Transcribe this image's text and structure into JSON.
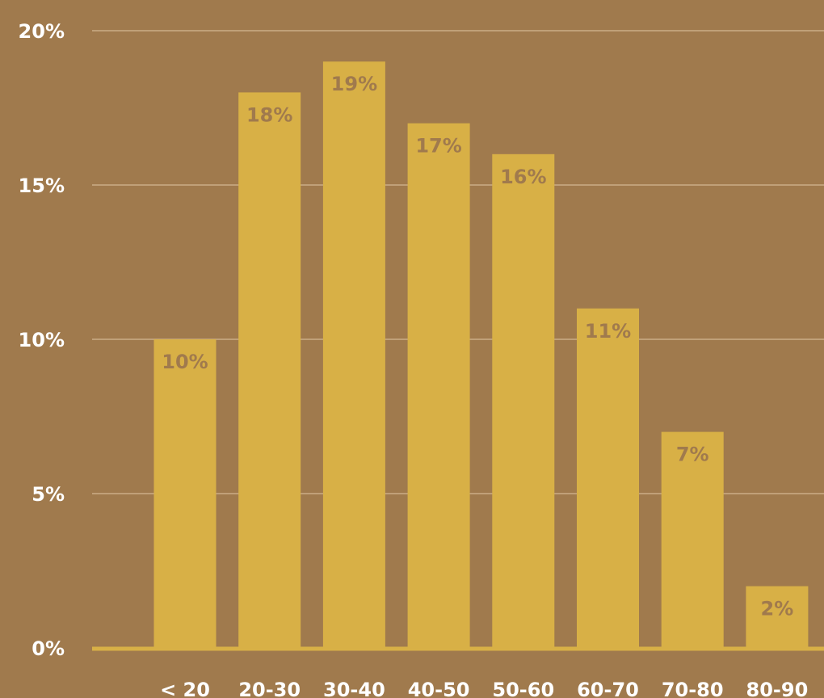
{
  "chart_data": {
    "type": "bar",
    "title": "",
    "xlabel": "",
    "ylabel": "",
    "categories": [
      "< 20",
      "20-30",
      "30-40",
      "40-50",
      "50-60",
      "60-70",
      "70-80",
      "80-90"
    ],
    "values": [
      10,
      18,
      19,
      17,
      16,
      11,
      7,
      2
    ],
    "data_labels": [
      "10%",
      "18%",
      "19%",
      "17%",
      "16%",
      "11%",
      "7%",
      "2%"
    ],
    "ylim": [
      0,
      20
    ],
    "yticks": [
      0,
      5,
      10,
      15,
      20
    ],
    "ytick_labels": [
      "0%",
      "5%",
      "10%",
      "15%",
      "20%"
    ],
    "grid": true,
    "legend": "none"
  },
  "colors": {
    "background": "#A07A4D",
    "bar": "#D8B046",
    "gridline": "#C0A078",
    "baseline": "#D8B046",
    "tick_text": "#FFFFFF",
    "data_label_text": "#A07A4D"
  }
}
